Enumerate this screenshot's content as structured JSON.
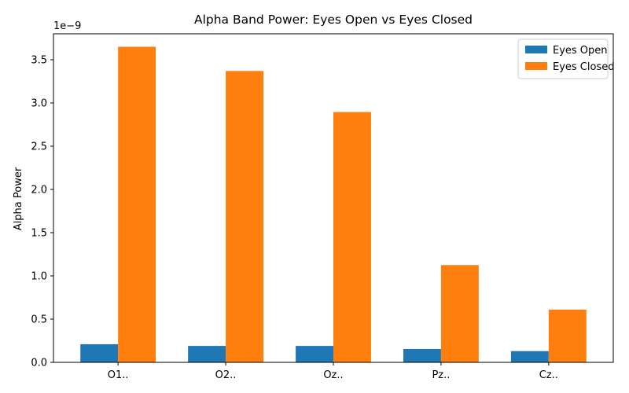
{
  "chart_data": {
    "type": "bar",
    "title": "Alpha Band Power: Eyes Open vs Eyes Closed",
    "xlabel": "",
    "ylabel": "Alpha Power",
    "y_offset_label": "1e−9",
    "categories": [
      "O1..",
      "O2..",
      "Oz..",
      "Pz..",
      "Cz.."
    ],
    "series": [
      {
        "name": "Eyes Open",
        "color": "#1f77b4",
        "values": [
          2.1e-10,
          1.9e-10,
          1.9e-10,
          1.55e-10,
          1.3e-10
        ]
      },
      {
        "name": "Eyes Closed",
        "color": "#ff7f0e",
        "values": [
          3.65e-09,
          3.37e-09,
          2.895e-09,
          1.125e-09,
          6.1e-10
        ]
      }
    ],
    "ylim": [
      0,
      3.8e-09
    ],
    "yticks": [
      0,
      5e-10,
      1e-09,
      1.5e-09,
      2e-09,
      2.5e-09,
      3e-09,
      3.5e-09
    ],
    "ytick_labels": [
      "0.0",
      "0.5",
      "1.0",
      "1.5",
      "2.0",
      "2.5",
      "3.0",
      "3.5"
    ],
    "legend_position": "top-right",
    "grid": false
  }
}
